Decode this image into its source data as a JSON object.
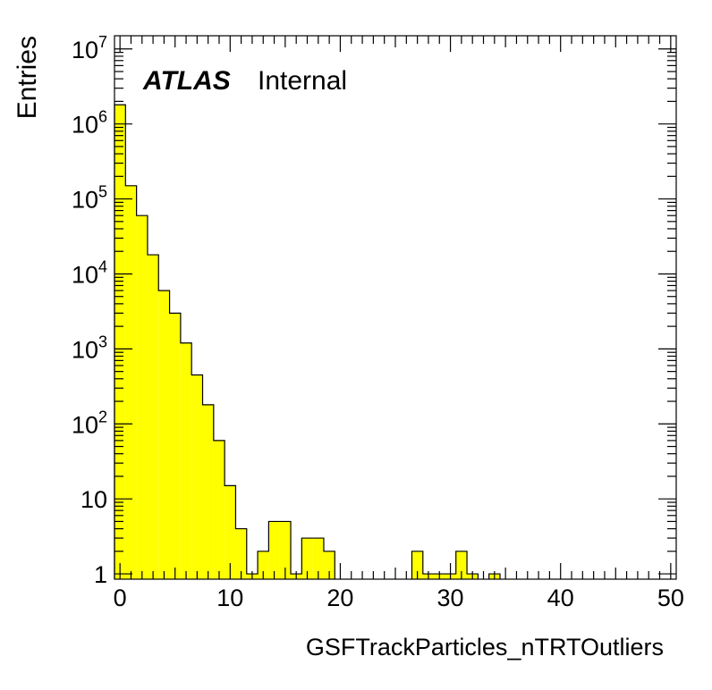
{
  "chart_data": {
    "type": "bar",
    "title": "",
    "xlabel": "GSFTrackParticles_nTRTOutliers",
    "ylabel": "Entries",
    "xlim": [
      -0.5,
      50.5
    ],
    "ylim": [
      0.85,
      15000000
    ],
    "yscale": "log",
    "grid": false,
    "fill_color": "#ffff00",
    "line_color": "#000000",
    "x_ticks": [
      {
        "value": 0,
        "label": "0"
      },
      {
        "value": 10,
        "label": "10"
      },
      {
        "value": 20,
        "label": "20"
      },
      {
        "value": 30,
        "label": "30"
      },
      {
        "value": 40,
        "label": "40"
      },
      {
        "value": 50,
        "label": "50"
      }
    ],
    "y_ticks": [
      {
        "value": 1,
        "mantissa": "1",
        "exp": ""
      },
      {
        "value": 10,
        "mantissa": "10",
        "exp": ""
      },
      {
        "value": 100,
        "mantissa": "10",
        "exp": "2"
      },
      {
        "value": 1000,
        "mantissa": "10",
        "exp": "3"
      },
      {
        "value": 10000,
        "mantissa": "10",
        "exp": "4"
      },
      {
        "value": 100000,
        "mantissa": "10",
        "exp": "5"
      },
      {
        "value": 1000000,
        "mantissa": "10",
        "exp": "6"
      },
      {
        "value": 10000000,
        "mantissa": "10",
        "exp": "7"
      }
    ],
    "categories": [
      0,
      1,
      2,
      3,
      4,
      5,
      6,
      7,
      8,
      9,
      10,
      11,
      12,
      13,
      14,
      15,
      16,
      17,
      18,
      19,
      20,
      21,
      22,
      23,
      24,
      25,
      26,
      27,
      28,
      29,
      30,
      31,
      32,
      33,
      34,
      35,
      36,
      37,
      38,
      39,
      40,
      41,
      42,
      43,
      44,
      45,
      46,
      47,
      48,
      49,
      50
    ],
    "values": [
      1800000,
      150000,
      60000,
      18000,
      6000,
      3000,
      1200,
      450,
      180,
      60,
      15,
      4,
      1,
      2,
      5,
      5,
      1,
      3,
      3,
      2,
      0,
      0,
      0,
      0,
      0,
      0,
      0,
      2,
      1,
      1,
      1,
      2,
      1,
      0,
      1,
      0,
      0,
      0,
      0,
      0,
      0,
      0,
      0,
      0,
      0,
      0,
      0,
      0,
      0,
      0,
      0
    ],
    "annotation": {
      "bold": "ATLAS",
      "text": "Internal"
    }
  }
}
